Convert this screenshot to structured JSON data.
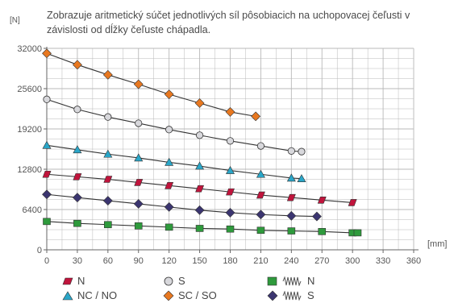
{
  "description": "Zobrazuje aritmetický súčet jednotlivých síl pôsobiacich na uchopovacej čeľusti v závislosti od dĺžky čeľuste chápadla.",
  "colors": {
    "grid": "#b8b8b8",
    "axis": "#666666",
    "line": "#333333",
    "N": "#c0143c",
    "NC_NO": "#2aa6c8",
    "S": "#d8d8dc",
    "SC_SO": "#e87820",
    "spring_N": "#2e9a3c",
    "spring_S": "#3b3570"
  },
  "chart_data": {
    "type": "line",
    "xlabel": "",
    "x_unit": "[mm]",
    "ylabel": "",
    "y_unit": "[N]",
    "xlim": [
      0,
      360
    ],
    "ylim": [
      0,
      32000
    ],
    "x_ticks": [
      "0",
      "30",
      "60",
      "90",
      "120",
      "150",
      "180",
      "210",
      "240",
      "270",
      "300",
      "330",
      "360"
    ],
    "y_ticks": [
      "0",
      "6400",
      "12800",
      "19200",
      "25600",
      "32000"
    ],
    "grid": true,
    "legend_position": "bottom-left",
    "series": [
      {
        "name": "N",
        "marker": "rect-tilted",
        "color": "#c0143c",
        "x": [
          0,
          30,
          60,
          90,
          120,
          150,
          180,
          210,
          240,
          270,
          300
        ],
        "y": [
          12000,
          11600,
          11200,
          10700,
          10200,
          9700,
          9200,
          8700,
          8300,
          7900,
          7500
        ]
      },
      {
        "name": "NC / NO",
        "marker": "triangle",
        "color": "#2aa6c8",
        "x": [
          0,
          30,
          60,
          90,
          120,
          150,
          180,
          210,
          240,
          250
        ],
        "y": [
          16600,
          15900,
          15200,
          14600,
          13900,
          13300,
          12600,
          12000,
          11400,
          11300
        ]
      },
      {
        "name": "S",
        "marker": "circle",
        "color": "#d8d8dc",
        "x": [
          0,
          30,
          60,
          90,
          120,
          150,
          180,
          210,
          240,
          250
        ],
        "y": [
          23900,
          22300,
          21100,
          20100,
          19100,
          18200,
          17300,
          16500,
          15700,
          15600
        ]
      },
      {
        "name": "SC / SO",
        "marker": "diamond",
        "color": "#e87820",
        "x": [
          0,
          30,
          60,
          90,
          120,
          150,
          180,
          205
        ],
        "y": [
          31200,
          29400,
          27800,
          26300,
          24700,
          23300,
          21900,
          21200
        ]
      },
      {
        "name": "N",
        "prefix_icon": "spring-icon",
        "marker": "square",
        "color": "#2e9a3c",
        "x": [
          0,
          30,
          60,
          90,
          120,
          150,
          180,
          210,
          240,
          270,
          300,
          305
        ],
        "y": [
          4500,
          4200,
          4000,
          3800,
          3600,
          3400,
          3300,
          3100,
          3000,
          2900,
          2700,
          2700
        ]
      },
      {
        "name": "S",
        "prefix_icon": "spring-icon",
        "marker": "diamond",
        "color": "#3b3570",
        "x": [
          0,
          30,
          60,
          90,
          120,
          150,
          180,
          210,
          240,
          265
        ],
        "y": [
          8800,
          8300,
          7800,
          7300,
          6800,
          6300,
          5900,
          5600,
          5400,
          5300
        ]
      }
    ]
  }
}
